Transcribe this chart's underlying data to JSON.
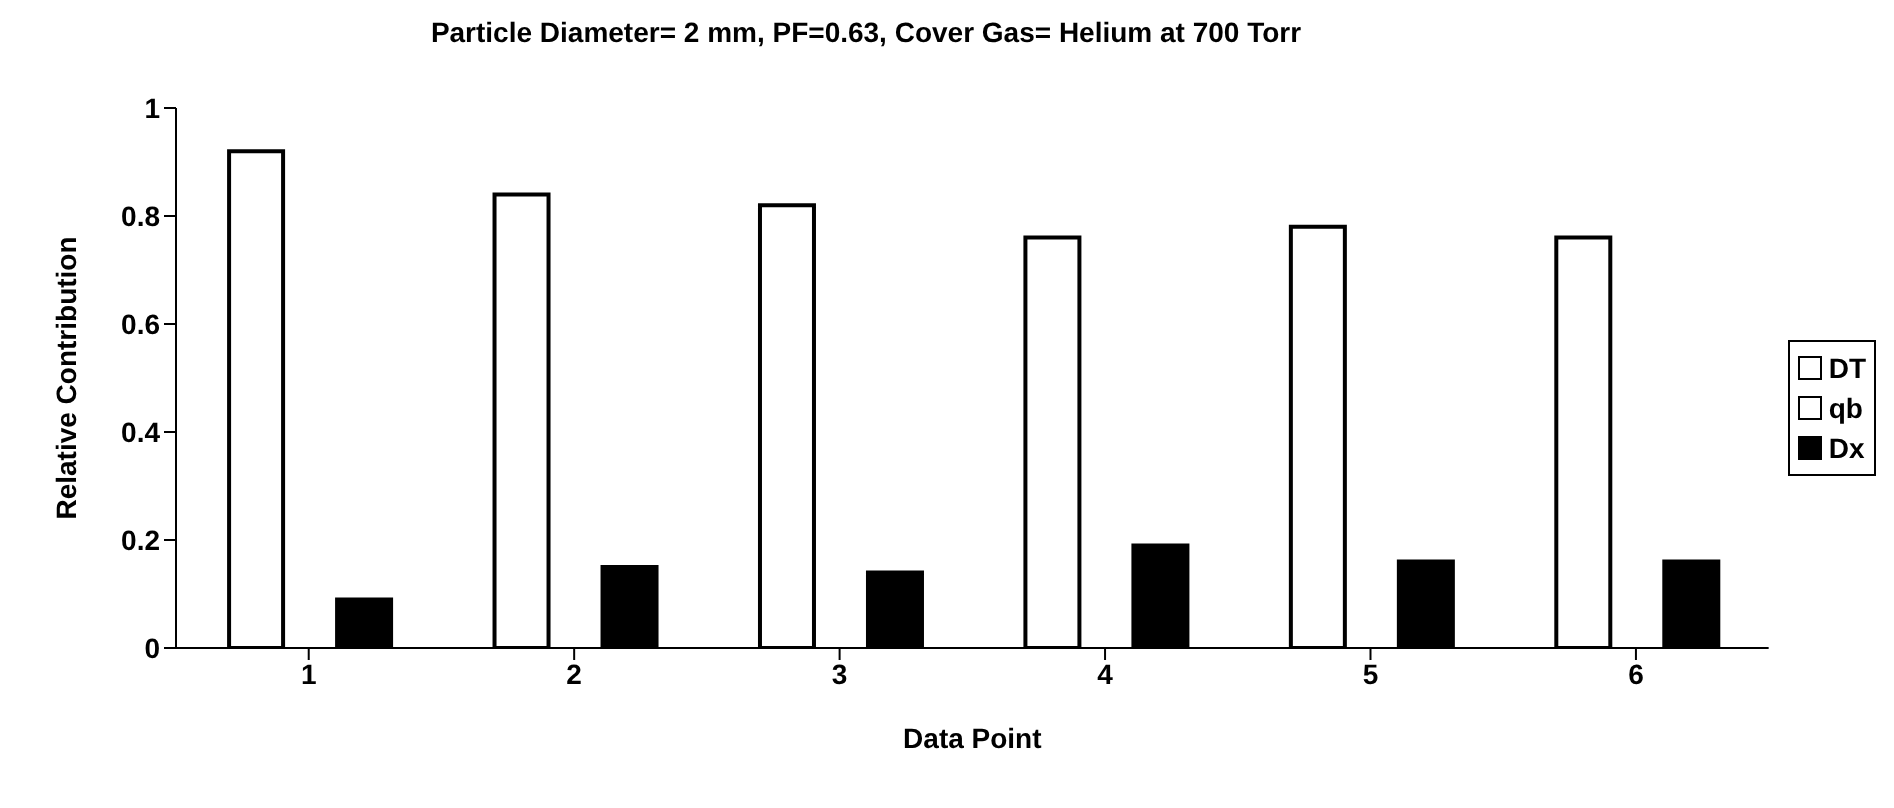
{
  "chart_data": {
    "type": "bar",
    "title": "Particle Diameter= 2 mm, PF=0.63, Cover Gas= Helium at 700 Torr",
    "xlabel": "Data Point",
    "ylabel": "Relative Contribution",
    "categories": [
      "1",
      "2",
      "3",
      "4",
      "5",
      "6"
    ],
    "series": [
      {
        "name": "DT",
        "color": "#ffffff",
        "values": [
          0.92,
          0.84,
          0.82,
          0.76,
          0.78,
          0.76
        ]
      },
      {
        "name": "qb",
        "color": "#ffffff",
        "values": [
          0,
          0,
          0,
          0,
          0,
          0
        ]
      },
      {
        "name": "Dx",
        "color": "#000000",
        "values": [
          0.09,
          0.15,
          0.14,
          0.19,
          0.16,
          0.16
        ]
      }
    ],
    "ylim": [
      0,
      1
    ],
    "yticks": [
      0,
      0.2,
      0.4,
      0.6,
      0.8,
      1
    ],
    "grid": false,
    "legend": "right"
  }
}
